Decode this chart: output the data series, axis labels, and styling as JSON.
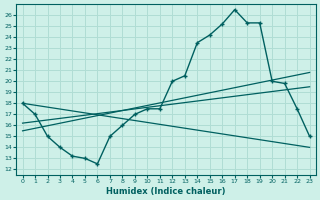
{
  "xlabel": "Humidex (Indice chaleur)",
  "bg_color": "#cef0e8",
  "grid_color": "#b0ddd4",
  "line_color": "#006060",
  "x_ticks": [
    0,
    1,
    2,
    3,
    4,
    5,
    6,
    7,
    8,
    9,
    10,
    11,
    12,
    13,
    14,
    15,
    16,
    17,
    18,
    19,
    20,
    21,
    22,
    23
  ],
  "y_ticks": [
    12,
    13,
    14,
    15,
    16,
    17,
    18,
    19,
    20,
    21,
    22,
    23,
    24,
    25,
    26
  ],
  "ylim": [
    11.5,
    27.0
  ],
  "xlim": [
    -0.5,
    23.5
  ],
  "main_x": [
    0,
    1,
    2,
    3,
    4,
    5,
    6,
    7,
    8,
    9,
    10,
    11,
    12,
    13,
    14,
    15,
    16,
    17,
    18,
    19,
    20,
    21,
    22,
    23
  ],
  "main_y": [
    18.0,
    17.0,
    15.0,
    14.0,
    13.2,
    13.0,
    12.5,
    15.0,
    16.0,
    17.0,
    17.5,
    17.5,
    20.0,
    20.5,
    23.5,
    24.2,
    25.2,
    26.5,
    25.3,
    25.3,
    20.0,
    19.8,
    17.5,
    15.0
  ],
  "trend1_x": [
    0,
    23
  ],
  "trend1_y": [
    18.0,
    14.0
  ],
  "trend2_x": [
    0,
    23
  ],
  "trend2_y": [
    15.5,
    20.8
  ],
  "trend3_x": [
    0,
    23
  ],
  "trend3_y": [
    16.2,
    19.5
  ]
}
